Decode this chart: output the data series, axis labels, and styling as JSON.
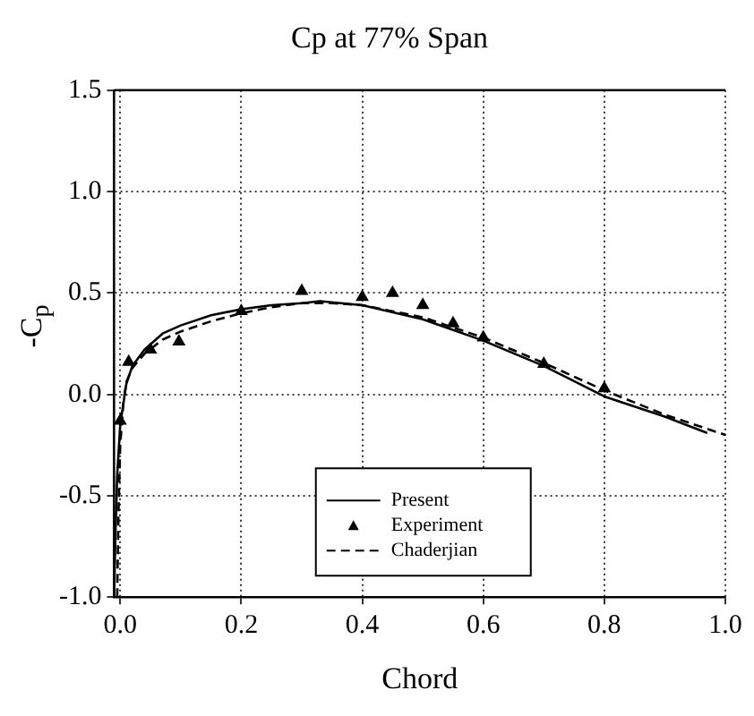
{
  "chart_data": {
    "type": "line",
    "title": "Cp at 77% Span",
    "xlabel": "Chord",
    "ylabel": "-C$_{p}$",
    "xlim": [
      -0.01,
      1.0
    ],
    "ylim": [
      -1.0,
      1.5
    ],
    "xticks": [
      {
        "value": 0,
        "label": "0.0"
      },
      0.2,
      0.4,
      0.6,
      0.8,
      {
        "value": 1,
        "label": "1.0"
      }
    ],
    "yticks": [
      {
        "value": -1,
        "label": "-1.0"
      },
      -0.5,
      {
        "value": 0,
        "label": "0.0"
      },
      0.5,
      {
        "value": 1,
        "label": "1.0"
      },
      1.5
    ],
    "grid": true,
    "legend": "bottom",
    "series": [
      {
        "name": "Present",
        "type": "line",
        "color": "#000000",
        "line_style": "solid",
        "marker": "none",
        "x": [
          -0.01,
          -0.008,
          -0.005,
          0.0,
          0.01,
          0.02,
          0.04,
          0.07,
          0.1,
          0.15,
          0.2,
          0.25,
          0.3,
          0.33,
          0.4,
          0.5,
          0.6,
          0.7,
          0.8,
          0.9,
          0.97
        ],
        "values": [
          -1.0,
          -0.7,
          -0.4,
          -0.15,
          0.05,
          0.14,
          0.22,
          0.3,
          0.34,
          0.39,
          0.42,
          0.44,
          0.45,
          0.46,
          0.44,
          0.37,
          0.265,
          0.14,
          -0.01,
          -0.11,
          -0.19
        ]
      },
      {
        "name": "Experiment",
        "type": "scatter",
        "color": "#000000",
        "marker": "triangle",
        "x": [
          0.0,
          0.014,
          0.05,
          0.097,
          0.2,
          0.3,
          0.4,
          0.45,
          0.5,
          0.55,
          0.6,
          0.7,
          0.8
        ],
        "values": [
          -0.13,
          0.16,
          0.22,
          0.26,
          0.41,
          0.51,
          0.48,
          0.5,
          0.44,
          0.35,
          0.28,
          0.15,
          0.03
        ]
      },
      {
        "name": "Chaderjian",
        "type": "line",
        "color": "#000000",
        "line_style": "dashed",
        "marker": "none",
        "x": [
          -0.005,
          -0.003,
          0.0,
          0.005,
          0.01,
          0.02,
          0.04,
          0.07,
          0.1,
          0.15,
          0.2,
          0.25,
          0.3,
          0.35,
          0.4,
          0.5,
          0.6,
          0.7,
          0.8,
          0.9,
          1.0
        ],
        "values": [
          -1.0,
          -0.6,
          -0.25,
          -0.05,
          0.06,
          0.13,
          0.2,
          0.27,
          0.31,
          0.36,
          0.4,
          0.43,
          0.45,
          0.45,
          0.44,
          0.38,
          0.28,
          0.155,
          0.02,
          -0.1,
          -0.2
        ]
      }
    ]
  }
}
